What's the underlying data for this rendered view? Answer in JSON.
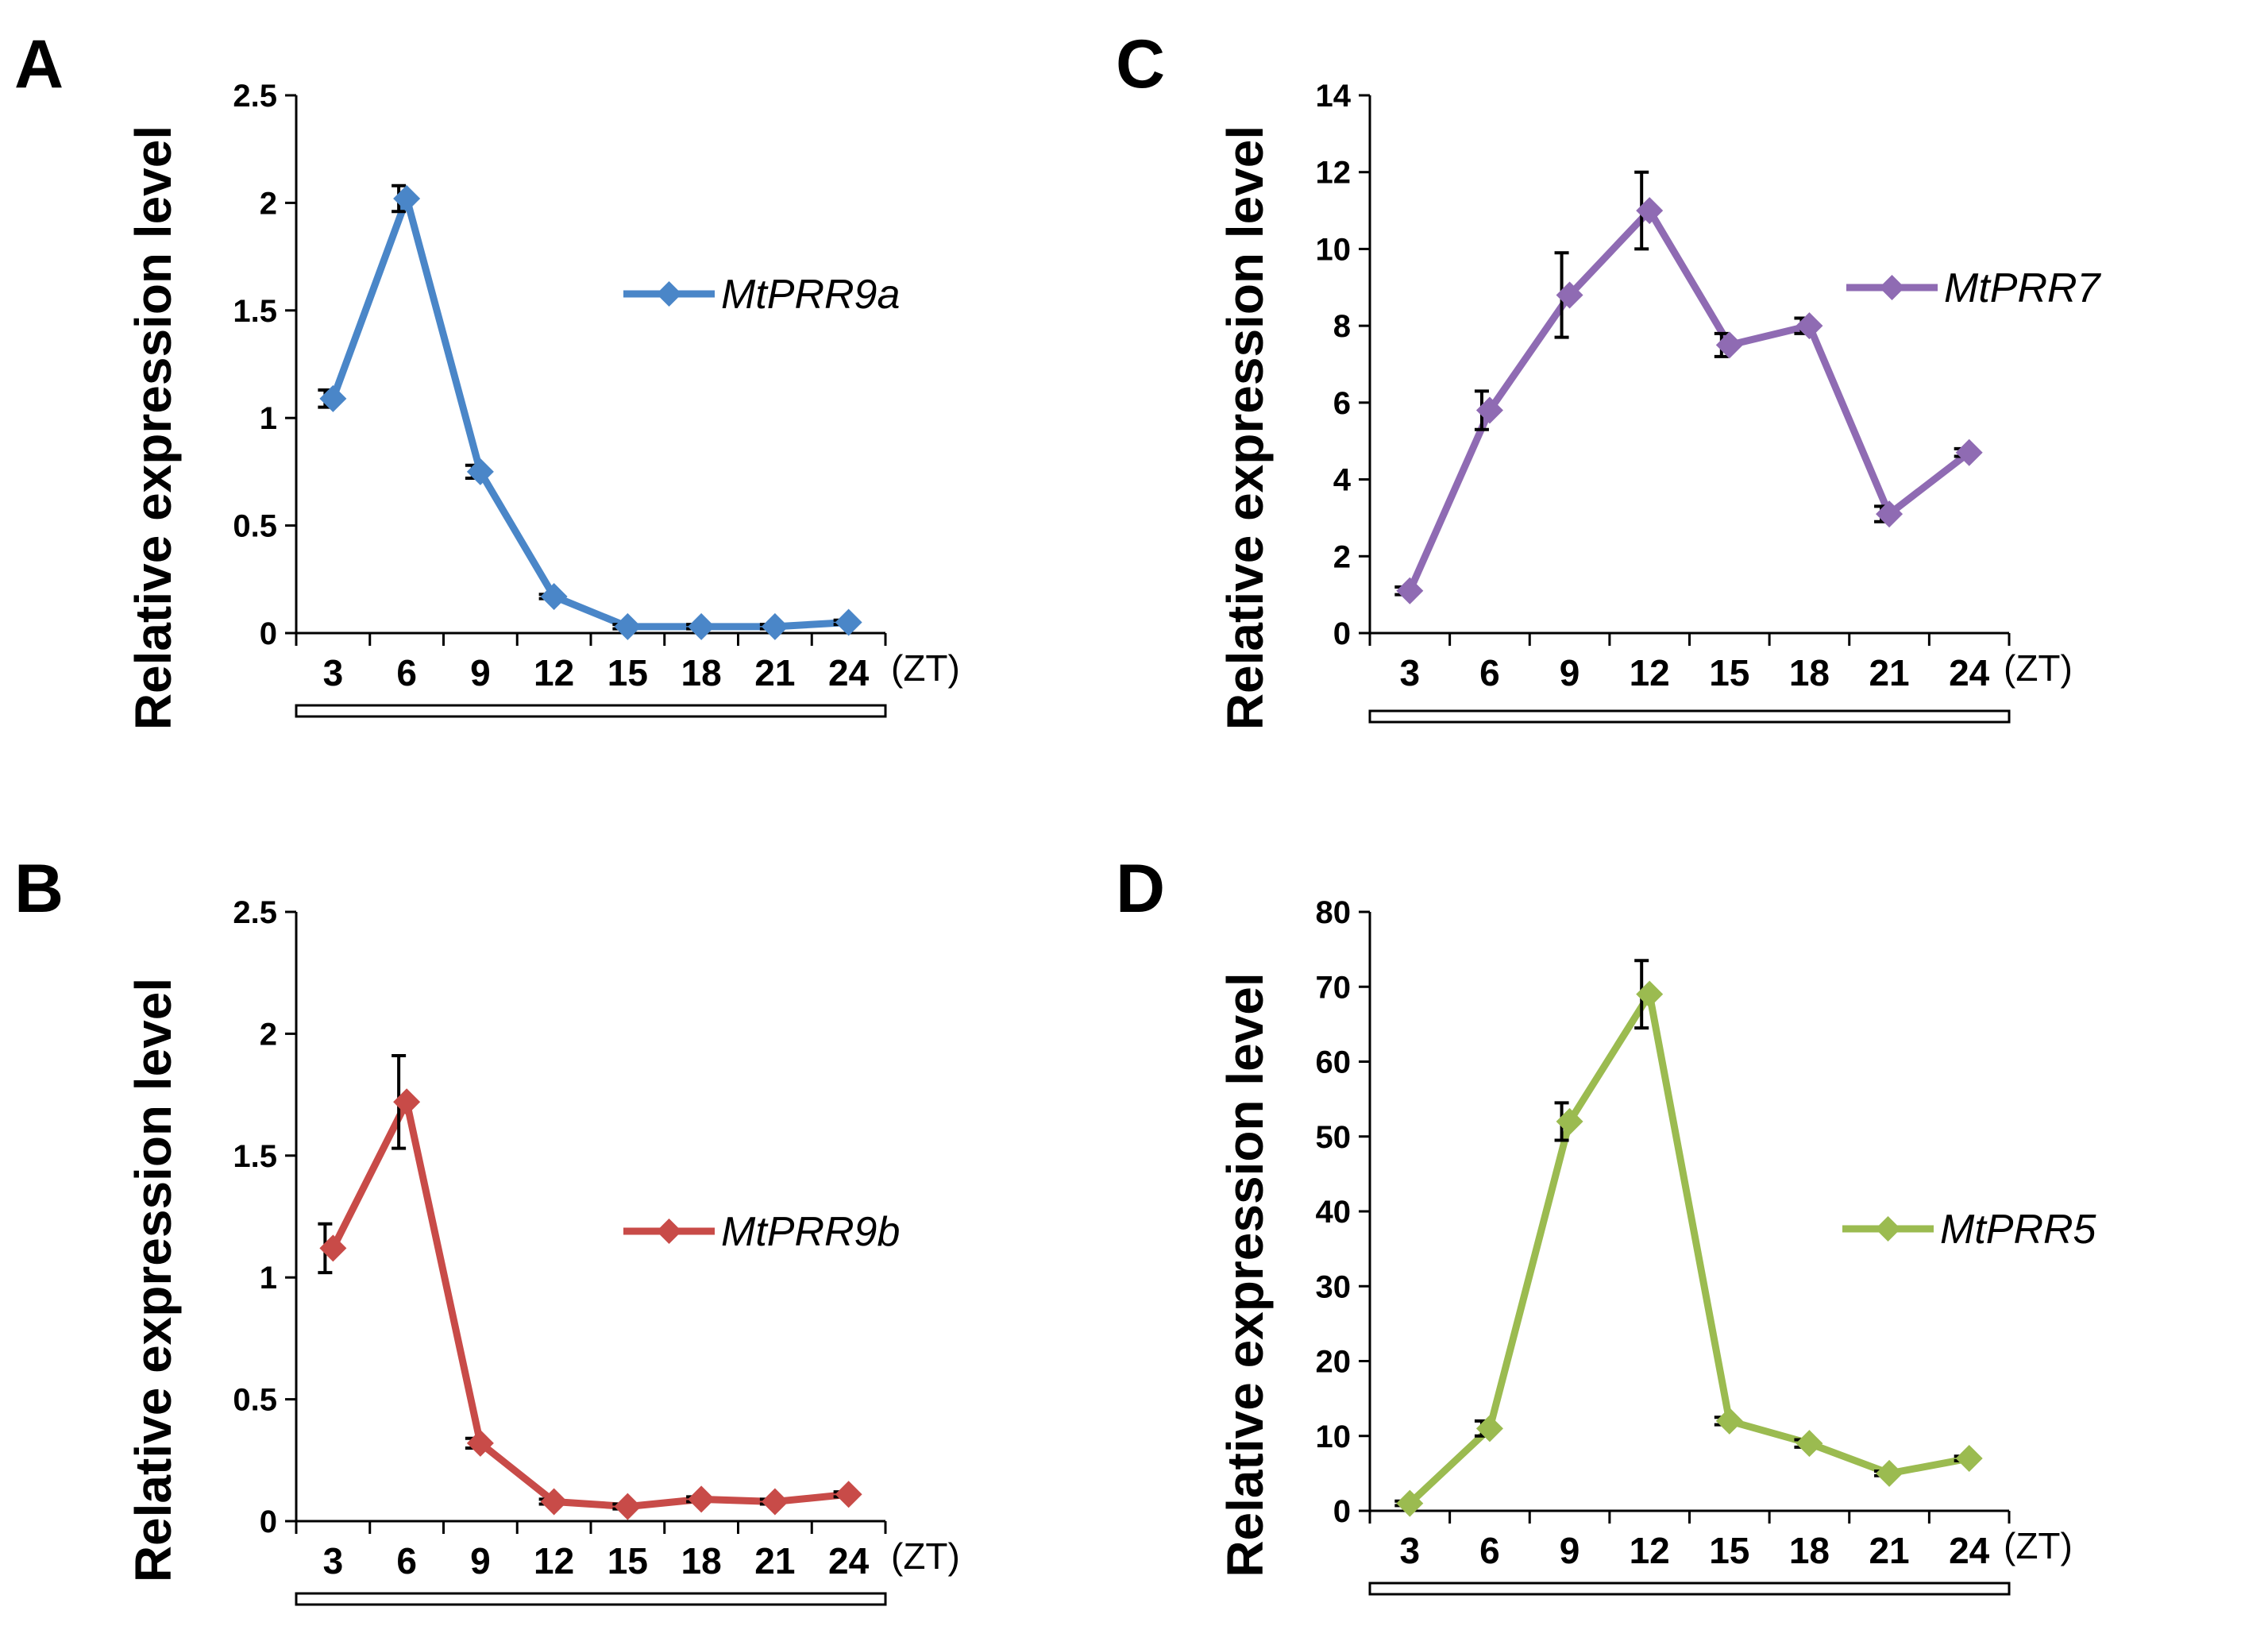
{
  "chart_data": [
    {
      "panel": "A",
      "type": "line",
      "ylabel": "Relative expression level",
      "x_unit": "(ZT)",
      "categories": [
        "3",
        "6",
        "9",
        "12",
        "15",
        "18",
        "21",
        "24"
      ],
      "ylim": [
        0,
        2.5
      ],
      "yticks": [
        "0",
        "0.5",
        "1",
        "1.5",
        "2",
        "2.5"
      ],
      "series": [
        {
          "name": "MtPRR9a",
          "color": "#4a86c8",
          "values": [
            1.09,
            2.02,
            0.75,
            0.17,
            0.03,
            0.03,
            0.03,
            0.05
          ],
          "errors": [
            0.04,
            0.06,
            0.03,
            0.01,
            0.01,
            0.01,
            0.01,
            0.01
          ]
        }
      ]
    },
    {
      "panel": "B",
      "type": "line",
      "ylabel": "Relative expression level",
      "x_unit": "(ZT)",
      "categories": [
        "3",
        "6",
        "9",
        "12",
        "15",
        "18",
        "21",
        "24"
      ],
      "ylim": [
        0,
        2.5
      ],
      "yticks": [
        "0",
        "0.5",
        "1",
        "1.5",
        "2",
        "2.5"
      ],
      "series": [
        {
          "name": "MtPRR9b",
          "color": "#c84b48",
          "values": [
            1.12,
            1.72,
            0.32,
            0.08,
            0.06,
            0.09,
            0.08,
            0.11
          ],
          "errors": [
            0.1,
            0.19,
            0.02,
            0.01,
            0.01,
            0.01,
            0.01,
            0.01
          ]
        }
      ]
    },
    {
      "panel": "C",
      "type": "line",
      "ylabel": "Relative expression level",
      "x_unit": "(ZT)",
      "categories": [
        "3",
        "6",
        "9",
        "12",
        "15",
        "18",
        "21",
        "24"
      ],
      "ylim": [
        0,
        14
      ],
      "yticks": [
        "0",
        "2",
        "4",
        "6",
        "8",
        "10",
        "12",
        "14"
      ],
      "series": [
        {
          "name": "MtPRR7",
          "color": "#8f6bb3",
          "values": [
            1.1,
            5.8,
            8.8,
            11.0,
            7.5,
            8.0,
            3.1,
            4.7
          ],
          "errors": [
            0.1,
            0.5,
            1.1,
            1.0,
            0.3,
            0.2,
            0.2,
            0.1
          ]
        }
      ]
    },
    {
      "panel": "D",
      "type": "line",
      "ylabel": "Relative expression level",
      "x_unit": "(ZT)",
      "categories": [
        "3",
        "6",
        "9",
        "12",
        "15",
        "18",
        "21",
        "24"
      ],
      "ylim": [
        0,
        80
      ],
      "yticks": [
        "0",
        "10",
        "20",
        "30",
        "40",
        "50",
        "60",
        "70",
        "80"
      ],
      "series": [
        {
          "name": "MtPRR5",
          "color": "#9bbb50",
          "values": [
            1.0,
            11.0,
            52.0,
            69.0,
            12.0,
            9.0,
            5.0,
            7.0
          ],
          "errors": [
            0.3,
            1.0,
            2.5,
            4.5,
            0.5,
            0.5,
            0.3,
            0.3
          ]
        }
      ]
    }
  ]
}
